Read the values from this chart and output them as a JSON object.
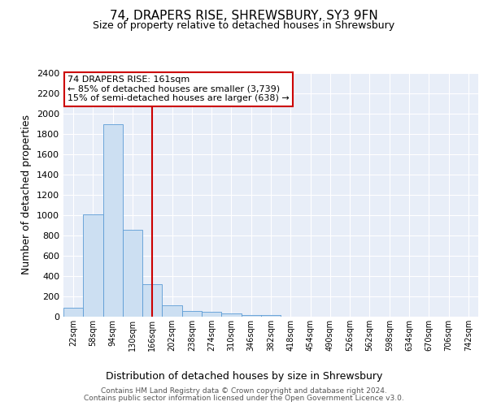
{
  "title": "74, DRAPERS RISE, SHREWSBURY, SY3 9FN",
  "subtitle": "Size of property relative to detached houses in Shrewsbury",
  "xlabel": "Distribution of detached houses by size in Shrewsbury",
  "ylabel": "Number of detached properties",
  "bin_labels": [
    "22sqm",
    "58sqm",
    "94sqm",
    "130sqm",
    "166sqm",
    "202sqm",
    "238sqm",
    "274sqm",
    "310sqm",
    "346sqm",
    "382sqm",
    "418sqm",
    "454sqm",
    "490sqm",
    "526sqm",
    "562sqm",
    "598sqm",
    "634sqm",
    "670sqm",
    "706sqm",
    "742sqm"
  ],
  "bar_values": [
    90,
    1010,
    1900,
    860,
    320,
    115,
    55,
    50,
    35,
    20,
    20,
    0,
    0,
    0,
    0,
    0,
    0,
    0,
    0,
    0,
    0
  ],
  "bar_color": "#ccdff2",
  "bar_edge_color": "#5b9bd5",
  "property_line_color": "#cc0000",
  "annotation_line1": "74 DRAPERS RISE: 161sqm",
  "annotation_line2": "← 85% of detached houses are smaller (3,739)",
  "annotation_line3": "15% of semi-detached houses are larger (638) →",
  "annotation_box_color": "#ffffff",
  "annotation_box_edge_color": "#cc0000",
  "footnote1": "Contains HM Land Registry data © Crown copyright and database right 2024.",
  "footnote2": "Contains public sector information licensed under the Open Government Licence v3.0.",
  "bg_color": "#e8eef8",
  "ylim_max": 2400,
  "yticks": [
    0,
    200,
    400,
    600,
    800,
    1000,
    1200,
    1400,
    1600,
    1800,
    2000,
    2200,
    2400
  ]
}
